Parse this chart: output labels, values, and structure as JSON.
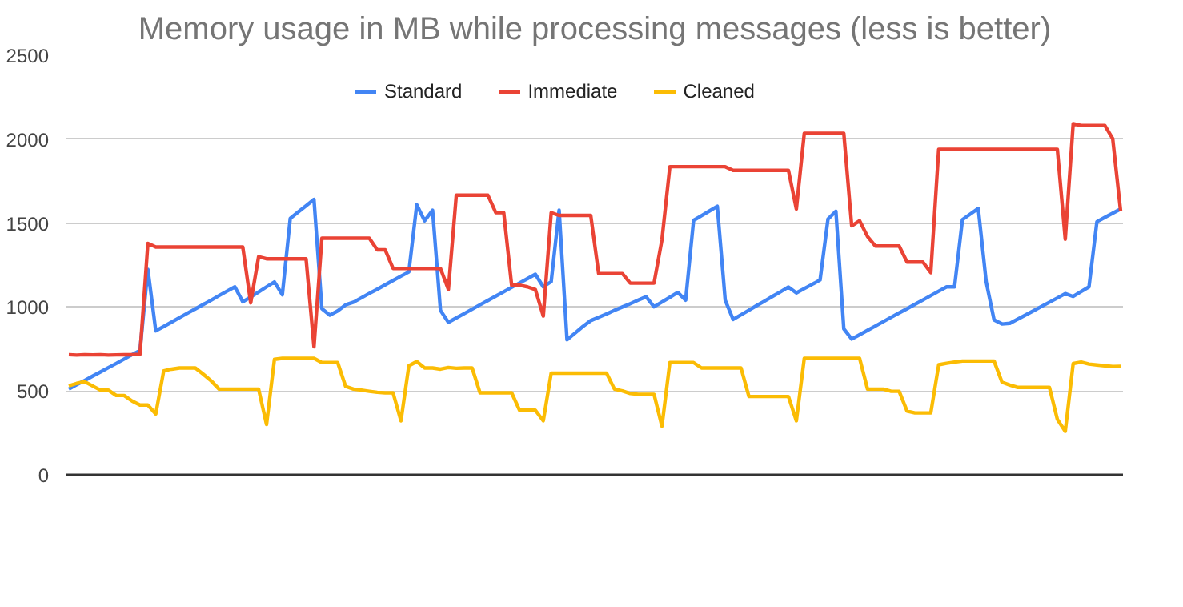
{
  "chart_data": {
    "type": "line",
    "title": "Memory usage in MB while processing messages (less is better)",
    "categories": [
      null,
      null,
      null,
      null,
      null,
      null,
      null,
      null,
      null,
      null,
      null,
      null,
      null,
      null,
      null,
      null,
      null,
      null,
      null,
      null,
      null,
      null,
      null,
      null,
      null,
      null,
      null,
      null,
      null,
      null,
      null,
      null,
      null,
      null,
      null,
      null,
      null,
      null,
      null,
      null,
      null,
      null,
      null,
      null,
      null,
      null,
      null,
      null,
      null,
      null,
      null,
      null,
      null,
      null,
      null,
      null,
      null,
      null,
      null,
      null,
      null,
      null,
      null,
      null,
      null,
      null,
      null,
      null,
      null,
      null,
      null,
      null,
      null,
      null,
      null,
      null,
      null,
      null,
      null,
      null,
      null,
      null,
      null,
      null,
      null,
      null,
      null,
      null,
      null,
      null,
      null,
      null,
      null,
      null,
      null,
      null,
      null,
      null,
      null,
      null,
      null,
      null,
      null,
      null,
      null,
      null,
      null,
      null,
      null,
      null,
      null,
      null,
      null,
      null,
      null,
      null,
      null,
      null,
      null,
      null,
      null,
      null,
      null,
      null,
      null,
      null,
      null,
      null,
      null,
      null,
      null,
      null,
      null,
      null
    ],
    "series": [
      {
        "name": "Standard",
        "color": "#4285f4",
        "values": [
          511,
          537,
          562,
          588,
          613,
          639,
          664,
          690,
          716,
          741,
          1224,
          858,
          884,
          910,
          937,
          963,
          989,
          1015,
          1041,
          1068,
          1094,
          1120,
          1031,
          1060,
          1090,
          1120,
          1149,
          1073,
          1528,
          1566,
          1603,
          1641,
          990,
          952,
          977,
          1013,
          1029,
          1055,
          1081,
          1106,
          1132,
          1158,
          1184,
          1209,
          1609,
          1514,
          1577,
          980,
          909,
          935,
          961,
          987,
          1013,
          1039,
          1065,
          1091,
          1117,
          1143,
          1169,
          1195,
          1120,
          1151,
          1577,
          805,
          844,
          884,
          919,
          939,
          959,
          980,
          1000,
          1020,
          1041,
          1061,
          1001,
          1030,
          1058,
          1087,
          1041,
          1516,
          1544,
          1572,
          1600,
          1041,
          926,
          954,
          981,
          1009,
          1036,
          1064,
          1091,
          1119,
          1084,
          1110,
          1135,
          1161,
          1524,
          1571,
          870,
          809,
          835,
          861,
          887,
          913,
          939,
          965,
          990,
          1016,
          1042,
          1068,
          1094,
          1120,
          1120,
          1521,
          1554,
          1587,
          1151,
          923,
          899,
          903,
          928,
          953,
          978,
          1004,
          1029,
          1054,
          1080,
          1063,
          1092,
          1120,
          1508,
          1534,
          1559,
          1584
        ]
      },
      {
        "name": "Immediate",
        "color": "#ea4335",
        "values": [
          716,
          714,
          716,
          715,
          716,
          714,
          715,
          716,
          716,
          718,
          1379,
          1357,
          1357,
          1357,
          1357,
          1357,
          1357,
          1357,
          1357,
          1357,
          1357,
          1357,
          1357,
          1025,
          1300,
          1287,
          1287,
          1287,
          1287,
          1287,
          1287,
          763,
          1410,
          1410,
          1410,
          1410,
          1410,
          1410,
          1410,
          1341,
          1341,
          1230,
          1230,
          1230,
          1230,
          1230,
          1230,
          1230,
          1104,
          1666,
          1666,
          1666,
          1666,
          1666,
          1562,
          1562,
          1130,
          1130,
          1120,
          1104,
          946,
          1562,
          1546,
          1546,
          1546,
          1546,
          1546,
          1199,
          1199,
          1199,
          1199,
          1142,
          1142,
          1142,
          1142,
          1400,
          1836,
          1836,
          1836,
          1836,
          1836,
          1836,
          1836,
          1836,
          1814,
          1814,
          1814,
          1814,
          1814,
          1814,
          1814,
          1814,
          1584,
          2035,
          2035,
          2035,
          2035,
          2035,
          2035,
          1483,
          1514,
          1420,
          1363,
          1363,
          1363,
          1363,
          1268,
          1268,
          1268,
          1205,
          1940,
          1940,
          1940,
          1940,
          1940,
          1940,
          1940,
          1940,
          1940,
          1940,
          1940,
          1940,
          1940,
          1940,
          1940,
          1940,
          1404,
          2092,
          2082,
          2082,
          2082,
          2082,
          2003,
          1571
        ]
      },
      {
        "name": "Cleaned",
        "color": "#fbbc04",
        "values": [
          530,
          545,
          555,
          530,
          505,
          505,
          473,
          473,
          440,
          416,
          416,
          363,
          620,
          630,
          637,
          637,
          637,
          600,
          560,
          511,
          511,
          511,
          511,
          511,
          511,
          300,
          688,
          694,
          694,
          694,
          694,
          694,
          669,
          669,
          669,
          527,
          511,
          505,
          498,
          492,
          489,
          489,
          322,
          650,
          675,
          637,
          637,
          630,
          640,
          635,
          637,
          637,
          489,
          489,
          489,
          489,
          489,
          385,
          385,
          385,
          322,
          606,
          606,
          606,
          606,
          606,
          606,
          606,
          606,
          511,
          500,
          485,
          480,
          480,
          480,
          290,
          669,
          669,
          669,
          669,
          637,
          637,
          637,
          637,
          637,
          637,
          467,
          467,
          467,
          467,
          467,
          467,
          322,
          694,
          694,
          694,
          694,
          694,
          694,
          694,
          694,
          511,
          511,
          511,
          498,
          498,
          380,
          369,
          369,
          369,
          656,
          665,
          672,
          678,
          678,
          678,
          678,
          678,
          552,
          535,
          521,
          521,
          521,
          521,
          521,
          331,
          259,
          663,
          672,
          660,
          655,
          650,
          645,
          647
        ]
      }
    ],
    "ylim": [
      0,
      2500
    ],
    "yticks": [
      0,
      500,
      1000,
      1500,
      2000,
      2500
    ],
    "grid": "y",
    "legend": "top",
    "tick_labels": "y",
    "marker": "none",
    "line_style": "solid"
  }
}
